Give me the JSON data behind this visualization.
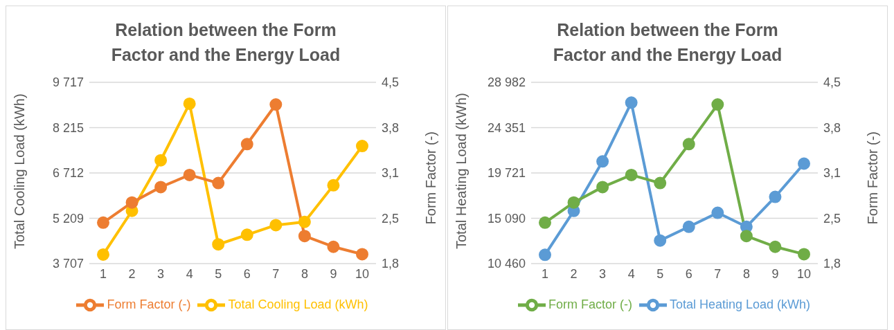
{
  "chart_data": [
    {
      "type": "line",
      "title": "Relation between the Form Factor and the Energy Load",
      "ylabel": "Total Cooling Load (kWh)",
      "y2label": "Form Factor (-)",
      "categories": [
        "1",
        "2",
        "3",
        "4",
        "5",
        "6",
        "7",
        "8",
        "9",
        "10"
      ],
      "ylim": [
        3707,
        9717
      ],
      "yticks": [
        {
          "value": 3707,
          "label": "3 707"
        },
        {
          "value": 5209.5,
          "label": "5 209"
        },
        {
          "value": 6712,
          "label": "6 712"
        },
        {
          "value": 8214.5,
          "label": "8 215"
        },
        {
          "value": 9717,
          "label": "9 717"
        }
      ],
      "y2lim": [
        1.8,
        4.5
      ],
      "y2ticks": [
        {
          "value": 1.8,
          "label": "1,8"
        },
        {
          "value": 2.475,
          "label": "2,5"
        },
        {
          "value": 3.15,
          "label": "3,1"
        },
        {
          "value": 3.825,
          "label": "3,8"
        },
        {
          "value": 4.5,
          "label": "4,5"
        }
      ],
      "grid": "y",
      "legend": "bottom",
      "marker": "circle",
      "series": [
        {
          "name": "Total Cooling Load (kWh)",
          "color": "#ffc000",
          "values": [
            4008,
            5456,
            7131,
            9007,
            4344,
            4663,
            4982,
            5091,
            6302,
            7605
          ]
        },
        {
          "name": "Form Factor (-)",
          "color": "#ed7d31",
          "axis": "y2",
          "values": [
            2.41,
            2.71,
            2.94,
            3.12,
            3.0,
            3.58,
            4.17,
            2.21,
            2.05,
            1.94
          ]
        }
      ]
    },
    {
      "type": "line",
      "title": "Relation between the Form Factor and the Energy Load",
      "ylabel": "Total Heating Load (kWh)",
      "y2label": "Form Factor (-)",
      "categories": [
        "1",
        "2",
        "3",
        "4",
        "5",
        "6",
        "7",
        "8",
        "9",
        "10"
      ],
      "ylim": [
        10460,
        28982
      ],
      "yticks": [
        {
          "value": 10460,
          "label": "10 460"
        },
        {
          "value": 15090.5,
          "label": "15 090"
        },
        {
          "value": 19721,
          "label": "19 721"
        },
        {
          "value": 24351.5,
          "label": "24 351"
        },
        {
          "value": 28982,
          "label": "28 982"
        }
      ],
      "y2lim": [
        1.8,
        4.5
      ],
      "y2ticks": [
        {
          "value": 1.8,
          "label": "1,8"
        },
        {
          "value": 2.475,
          "label": "2,5"
        },
        {
          "value": 3.15,
          "label": "3,1"
        },
        {
          "value": 3.825,
          "label": "3,8"
        },
        {
          "value": 4.5,
          "label": "4,5"
        }
      ],
      "grid": "y",
      "legend": "bottom",
      "marker": "circle",
      "series": [
        {
          "name": "Total Heating Load (kWh)",
          "color": "#5b9bd5",
          "values": [
            11358,
            15848,
            20900,
            26907,
            12817,
            14221,
            15651,
            14221,
            17280,
            20675
          ]
        },
        {
          "name": "Form Factor (-)",
          "color": "#70ad47",
          "axis": "y2",
          "values": [
            2.41,
            2.71,
            2.94,
            3.12,
            3.0,
            3.58,
            4.17,
            2.21,
            2.05,
            1.94
          ]
        }
      ]
    }
  ]
}
